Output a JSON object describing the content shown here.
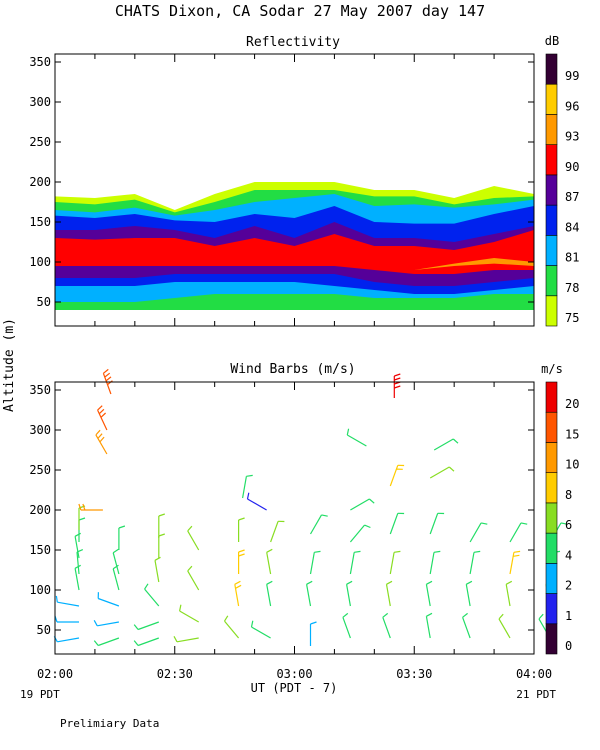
{
  "title": "CHATS Dixon, CA  Sodar  27 May 2007  day 147",
  "footer_note": "Prelimiary Data",
  "shared_axes": {
    "ylabel": "Altitude (m)",
    "xlabel": "UT  (PDT - 7)",
    "x_range": [
      "02:00",
      "04:00"
    ],
    "x_ticks": [
      "02:00",
      "02:30",
      "03:00",
      "03:30",
      "04:00"
    ],
    "x_left_note": "19 PDT",
    "x_right_note": "21 PDT"
  },
  "chart_data": [
    {
      "type": "heatmap",
      "title": "Reflectivity",
      "ylim": [
        20,
        360
      ],
      "yticks": [
        50,
        100,
        150,
        200,
        250,
        300,
        350
      ],
      "colorbar": {
        "unit": "dB",
        "ticks": [
          75,
          78,
          81,
          84,
          87,
          90,
          93,
          96,
          99
        ],
        "colors": [
          "#ccff00",
          "#22dd44",
          "#00b0ff",
          "#0022ee",
          "#550099",
          "#ff0000",
          "#ff9900",
          "#ffcc00",
          "#330033"
        ]
      },
      "columns_minutes": [
        0,
        10,
        20,
        30,
        40,
        50,
        60,
        70,
        80,
        90,
        100,
        110,
        120
      ],
      "bands": [
        {
          "level": "75",
          "top": [
            182,
            180,
            185,
            165,
            185,
            200,
            200,
            200,
            190,
            190,
            180,
            195,
            185
          ],
          "bottom": [
            40,
            40,
            40,
            40,
            40,
            40,
            40,
            40,
            40,
            40,
            40,
            40,
            40
          ]
        },
        {
          "level": "78",
          "top": [
            175,
            172,
            178,
            162,
            175,
            190,
            190,
            190,
            182,
            182,
            172,
            180,
            182
          ],
          "bottom": [
            40,
            40,
            40,
            40,
            40,
            40,
            40,
            40,
            40,
            40,
            40,
            40,
            40
          ]
        },
        {
          "level": "81",
          "top": [
            165,
            162,
            168,
            158,
            165,
            175,
            180,
            185,
            170,
            172,
            168,
            172,
            178
          ],
          "bottom": [
            50,
            50,
            50,
            55,
            60,
            60,
            60,
            60,
            55,
            55,
            55,
            60,
            60
          ]
        },
        {
          "level": "84",
          "top": [
            158,
            155,
            160,
            152,
            150,
            160,
            155,
            170,
            150,
            148,
            148,
            160,
            170
          ],
          "bottom": [
            70,
            70,
            70,
            75,
            75,
            75,
            75,
            70,
            65,
            60,
            60,
            65,
            70
          ]
        },
        {
          "level": "87",
          "top": [
            140,
            140,
            145,
            140,
            130,
            145,
            130,
            150,
            130,
            130,
            125,
            135,
            145
          ],
          "bottom": [
            80,
            80,
            80,
            85,
            85,
            85,
            85,
            85,
            75,
            70,
            70,
            75,
            80
          ]
        },
        {
          "level": "90",
          "top": [
            130,
            128,
            130,
            130,
            120,
            130,
            120,
            135,
            120,
            120,
            115,
            125,
            140
          ],
          "bottom": [
            95,
            95,
            95,
            95,
            95,
            95,
            95,
            95,
            90,
            85,
            85,
            90,
            90
          ]
        },
        {
          "level": "90",
          "top": [
            100,
            100,
            100,
            100,
            100,
            100,
            105,
            120,
            105,
            110,
            110,
            120,
            140
          ],
          "bottom": [
            95,
            95,
            95,
            95,
            95,
            95,
            95,
            95,
            95,
            92,
            92,
            95,
            100
          ]
        },
        {
          "level": "93",
          "top": [
            90,
            90,
            90,
            90,
            90,
            90,
            90,
            90,
            90,
            90,
            98,
            105,
            100
          ],
          "bottom": [
            90,
            90,
            90,
            90,
            90,
            90,
            90,
            90,
            90,
            90,
            95,
            98,
            95
          ]
        }
      ]
    },
    {
      "type": "scatter",
      "title": "Wind Barbs (m/s)",
      "ylim": [
        20,
        360
      ],
      "yticks": [
        50,
        100,
        150,
        200,
        250,
        300,
        350
      ],
      "colorbar": {
        "unit": "m/s",
        "ticks": [
          0,
          1,
          2,
          4,
          6,
          8,
          10,
          15,
          20
        ],
        "colors": [
          "#330033",
          "#2222ee",
          "#00b0ff",
          "#22dd66",
          "#88dd22",
          "#ffcc00",
          "#ff9900",
          "#ff5500",
          "#ee0000"
        ]
      },
      "barbs": [
        {
          "t": 6,
          "z": 40,
          "speed": 3,
          "dir": 260
        },
        {
          "t": 6,
          "z": 60,
          "speed": 3,
          "dir": 270
        },
        {
          "t": 6,
          "z": 80,
          "speed": 2,
          "dir": 280
        },
        {
          "t": 6,
          "z": 100,
          "speed": 5,
          "dir": 350
        },
        {
          "t": 6,
          "z": 120,
          "speed": 5,
          "dir": 355
        },
        {
          "t": 6,
          "z": 140,
          "speed": 5,
          "dir": 350
        },
        {
          "t": 6,
          "z": 160,
          "speed": 5,
          "dir": 0
        },
        {
          "t": 6,
          "z": 175,
          "speed": 6,
          "dir": 0
        },
        {
          "t": 12,
          "z": 200,
          "speed": 12,
          "dir": 270
        },
        {
          "t": 13,
          "z": 270,
          "speed": 14,
          "dir": 330
        },
        {
          "t": 13,
          "z": 300,
          "speed": 15,
          "dir": 335
        },
        {
          "t": 14,
          "z": 345,
          "speed": 18,
          "dir": 340
        },
        {
          "t": 16,
          "z": 40,
          "speed": 4,
          "dir": 250
        },
        {
          "t": 16,
          "z": 60,
          "speed": 3,
          "dir": 260
        },
        {
          "t": 16,
          "z": 80,
          "speed": 2,
          "dir": 290
        },
        {
          "t": 16,
          "z": 100,
          "speed": 5,
          "dir": 345
        },
        {
          "t": 16,
          "z": 120,
          "speed": 5,
          "dir": 345
        },
        {
          "t": 16,
          "z": 150,
          "speed": 5,
          "dir": 0
        },
        {
          "t": 26,
          "z": 40,
          "speed": 4,
          "dir": 250
        },
        {
          "t": 26,
          "z": 60,
          "speed": 4,
          "dir": 250
        },
        {
          "t": 26,
          "z": 80,
          "speed": 4,
          "dir": 320
        },
        {
          "t": 26,
          "z": 110,
          "speed": 6,
          "dir": 350
        },
        {
          "t": 26,
          "z": 140,
          "speed": 6,
          "dir": 0
        },
        {
          "t": 26,
          "z": 165,
          "speed": 7,
          "dir": 0
        },
        {
          "t": 36,
          "z": 40,
          "speed": 6,
          "dir": 260
        },
        {
          "t": 36,
          "z": 60,
          "speed": 6,
          "dir": 300
        },
        {
          "t": 36,
          "z": 100,
          "speed": 6,
          "dir": 330
        },
        {
          "t": 36,
          "z": 150,
          "speed": 6,
          "dir": 330
        },
        {
          "t": 46,
          "z": 40,
          "speed": 7,
          "dir": 320
        },
        {
          "t": 46,
          "z": 80,
          "speed": 9,
          "dir": 350
        },
        {
          "t": 46,
          "z": 120,
          "speed": 9,
          "dir": 0
        },
        {
          "t": 46,
          "z": 160,
          "speed": 6,
          "dir": 0
        },
        {
          "t": 47,
          "z": 215,
          "speed": 4,
          "dir": 10
        },
        {
          "t": 53,
          "z": 200,
          "speed": 1,
          "dir": 300
        },
        {
          "t": 54,
          "z": 40,
          "speed": 4,
          "dir": 300
        },
        {
          "t": 54,
          "z": 80,
          "speed": 5,
          "dir": 350
        },
        {
          "t": 54,
          "z": 120,
          "speed": 6,
          "dir": 350
        },
        {
          "t": 54,
          "z": 160,
          "speed": 6,
          "dir": 20
        },
        {
          "t": 64,
          "z": 30,
          "speed": 3,
          "dir": 0
        },
        {
          "t": 64,
          "z": 80,
          "speed": 4,
          "dir": 350
        },
        {
          "t": 64,
          "z": 120,
          "speed": 4,
          "dir": 10
        },
        {
          "t": 64,
          "z": 170,
          "speed": 4,
          "dir": 30
        },
        {
          "t": 74,
          "z": 40,
          "speed": 4,
          "dir": 340
        },
        {
          "t": 74,
          "z": 80,
          "speed": 5,
          "dir": 350
        },
        {
          "t": 74,
          "z": 120,
          "speed": 5,
          "dir": 10
        },
        {
          "t": 74,
          "z": 160,
          "speed": 5,
          "dir": 40
        },
        {
          "t": 74,
          "z": 200,
          "speed": 5,
          "dir": 60
        },
        {
          "t": 78,
          "z": 280,
          "speed": 5,
          "dir": 300
        },
        {
          "t": 84,
          "z": 40,
          "speed": 4,
          "dir": 340
        },
        {
          "t": 84,
          "z": 80,
          "speed": 6,
          "dir": 350
        },
        {
          "t": 84,
          "z": 120,
          "speed": 6,
          "dir": 10
        },
        {
          "t": 84,
          "z": 170,
          "speed": 5,
          "dir": 20
        },
        {
          "t": 84,
          "z": 230,
          "speed": 8,
          "dir": 20
        },
        {
          "t": 85,
          "z": 340,
          "speed": 20,
          "dir": 0
        },
        {
          "t": 94,
          "z": 40,
          "speed": 4,
          "dir": 350
        },
        {
          "t": 94,
          "z": 80,
          "speed": 5,
          "dir": 350
        },
        {
          "t": 94,
          "z": 120,
          "speed": 5,
          "dir": 10
        },
        {
          "t": 94,
          "z": 170,
          "speed": 5,
          "dir": 20
        },
        {
          "t": 94,
          "z": 240,
          "speed": 6,
          "dir": 60
        },
        {
          "t": 95,
          "z": 275,
          "speed": 5,
          "dir": 60
        },
        {
          "t": 104,
          "z": 40,
          "speed": 5,
          "dir": 340
        },
        {
          "t": 104,
          "z": 80,
          "speed": 5,
          "dir": 350
        },
        {
          "t": 104,
          "z": 120,
          "speed": 4,
          "dir": 10
        },
        {
          "t": 104,
          "z": 160,
          "speed": 5,
          "dir": 30
        },
        {
          "t": 114,
          "z": 40,
          "speed": 7,
          "dir": 330
        },
        {
          "t": 114,
          "z": 80,
          "speed": 7,
          "dir": 350
        },
        {
          "t": 114,
          "z": 120,
          "speed": 8,
          "dir": 10
        },
        {
          "t": 114,
          "z": 160,
          "speed": 5,
          "dir": 30
        },
        {
          "t": 124,
          "z": 40,
          "speed": 5,
          "dir": 330
        },
        {
          "t": 124,
          "z": 80,
          "speed": 6,
          "dir": 350
        },
        {
          "t": 124,
          "z": 120,
          "speed": 5,
          "dir": 10
        },
        {
          "t": 124,
          "z": 160,
          "speed": 5,
          "dir": 30
        }
      ]
    }
  ]
}
